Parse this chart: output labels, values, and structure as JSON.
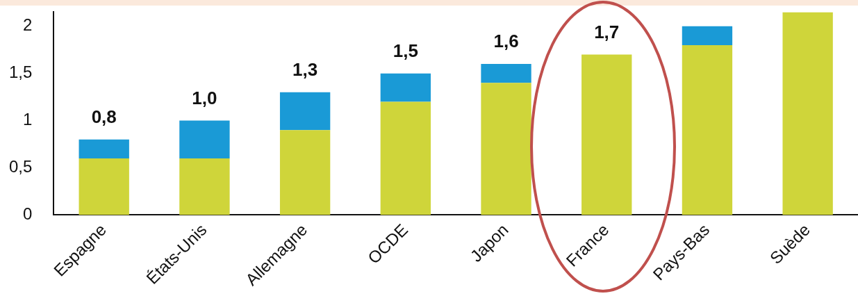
{
  "chart_data": {
    "type": "bar",
    "stacked": true,
    "categories": [
      "Espagne",
      "États-Unis",
      "Allemagne",
      "OCDE",
      "Japon",
      "France",
      "Pays-Bas",
      "Suède"
    ],
    "series": [
      {
        "color": "#cfd53a",
        "values": [
          0.6,
          0.6,
          0.9,
          1.2,
          1.4,
          1.7,
          1.8,
          2.15
        ]
      },
      {
        "color": "#1a9ad6",
        "values": [
          0.2,
          0.4,
          0.4,
          0.3,
          0.2,
          0,
          0.2,
          0
        ]
      }
    ],
    "totals": [
      "0,8",
      "1,0",
      "1,3",
      "1,5",
      "1,6",
      "1,7",
      null,
      null
    ],
    "ylim": [
      0,
      2.15
    ],
    "yticks": [
      0,
      {
        "value": 0.5,
        "label": "0,5"
      },
      1,
      {
        "value": 1.5,
        "label": "1,5"
      },
      2
    ],
    "grid": false,
    "legend": false
  }
}
